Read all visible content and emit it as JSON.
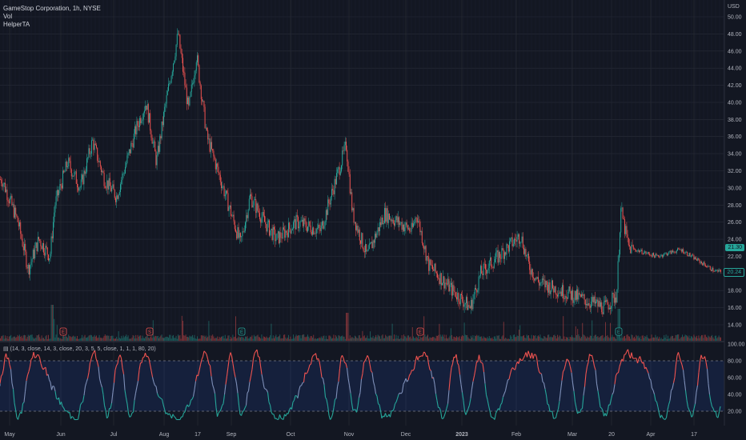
{
  "header": {
    "symbol_line": "GameStop Corporation, 1h, NYSE",
    "vol_label": "Vol",
    "helper_label": "HelperTA"
  },
  "currency": "USD",
  "price_axis": [
    "50.00",
    "48.00",
    "46.00",
    "44.00",
    "42.00",
    "40.00",
    "38.00",
    "36.00",
    "34.00",
    "32.00",
    "30.00",
    "28.00",
    "26.00",
    "24.00",
    "22.00",
    "20.00",
    "18.00",
    "16.00",
    "14.00"
  ],
  "price_tags": {
    "top": "21.30",
    "bottom": "20.24"
  },
  "oscillator": {
    "params": "(14, 3, close, 14, 3, close, 20, 3, 5, 5, close, 1, 1, 1, 80, 20)",
    "axis": [
      "100.00",
      "80.00",
      "60.00",
      "40.00",
      "20.00"
    ],
    "upper_band": 80,
    "lower_band": 20
  },
  "time_axis": [
    "May",
    "Jun",
    "Jul",
    "Aug",
    "17",
    "Sep",
    "Oct",
    "Nov",
    "Dec",
    "2023",
    "Feb",
    "Mar",
    "20",
    "Apr",
    "17"
  ],
  "event_markers": [
    "E",
    "S",
    "E",
    "E",
    "E"
  ],
  "colors": {
    "background": "#131722",
    "up": "#26a69a",
    "down": "#ef5350",
    "grid": "#2a2e39",
    "tag_top": "#26a69a",
    "tag_bottom": "#131722"
  },
  "chart_data": {
    "type": "candlestick",
    "instrument": "GameStop Corporation",
    "interval": "1h",
    "exchange": "NYSE",
    "ylim": [
      13,
      51
    ],
    "anchors": [
      {
        "x": "May",
        "y": 31
      },
      {
        "x": "May",
        "y": 26
      },
      {
        "x": "May",
        "y": 20.5
      },
      {
        "x": "May",
        "y": 24
      },
      {
        "x": "May",
        "y": 22
      },
      {
        "x": "Jun",
        "y": 28
      },
      {
        "x": "Jun",
        "y": 33
      },
      {
        "x": "Jun",
        "y": 30
      },
      {
        "x": "Jun",
        "y": 35.5
      },
      {
        "x": "Jun",
        "y": 31
      },
      {
        "x": "Jul",
        "y": 29
      },
      {
        "x": "Jul",
        "y": 37
      },
      {
        "x": "Jul",
        "y": 40
      },
      {
        "x": "Jul",
        "y": 33
      },
      {
        "x": "Aug",
        "y": 39
      },
      {
        "x": "Aug",
        "y": 48
      },
      {
        "x": "Aug",
        "y": 39
      },
      {
        "x": "17",
        "y": 45.5
      },
      {
        "x": "17",
        "y": 36
      },
      {
        "x": "17",
        "y": 31
      },
      {
        "x": "Sep",
        "y": 23.5
      },
      {
        "x": "Sep",
        "y": 29
      },
      {
        "x": "Sep",
        "y": 26
      },
      {
        "x": "Oct",
        "y": 24
      },
      {
        "x": "Oct",
        "y": 26
      },
      {
        "x": "Oct",
        "y": 25
      },
      {
        "x": "Nov",
        "y": 35
      },
      {
        "x": "Nov",
        "y": 27
      },
      {
        "x": "Nov",
        "y": 22
      },
      {
        "x": "Nov",
        "y": 27
      },
      {
        "x": "Dec",
        "y": 25
      },
      {
        "x": "Dec",
        "y": 27
      },
      {
        "x": "Dec",
        "y": 21
      },
      {
        "x": "2023",
        "y": 18
      },
      {
        "x": "2023",
        "y": 16
      },
      {
        "x": "2023",
        "y": 20
      },
      {
        "x": "Feb",
        "y": 24.5
      },
      {
        "x": "Feb",
        "y": 21
      },
      {
        "x": "Feb",
        "y": 19
      },
      {
        "x": "Mar",
        "y": 16
      },
      {
        "x": "Mar",
        "y": 17.5
      },
      {
        "x": "20",
        "y": 27.5
      },
      {
        "x": "20",
        "y": 23
      },
      {
        "x": "Apr",
        "y": 22
      },
      {
        "x": "Apr",
        "y": 22.8
      },
      {
        "x": "17",
        "y": 20.24
      }
    ],
    "last_price": 20.24,
    "series": [
      {
        "name": "Vol",
        "values": []
      },
      {
        "name": "HelperTA",
        "values": []
      }
    ]
  }
}
